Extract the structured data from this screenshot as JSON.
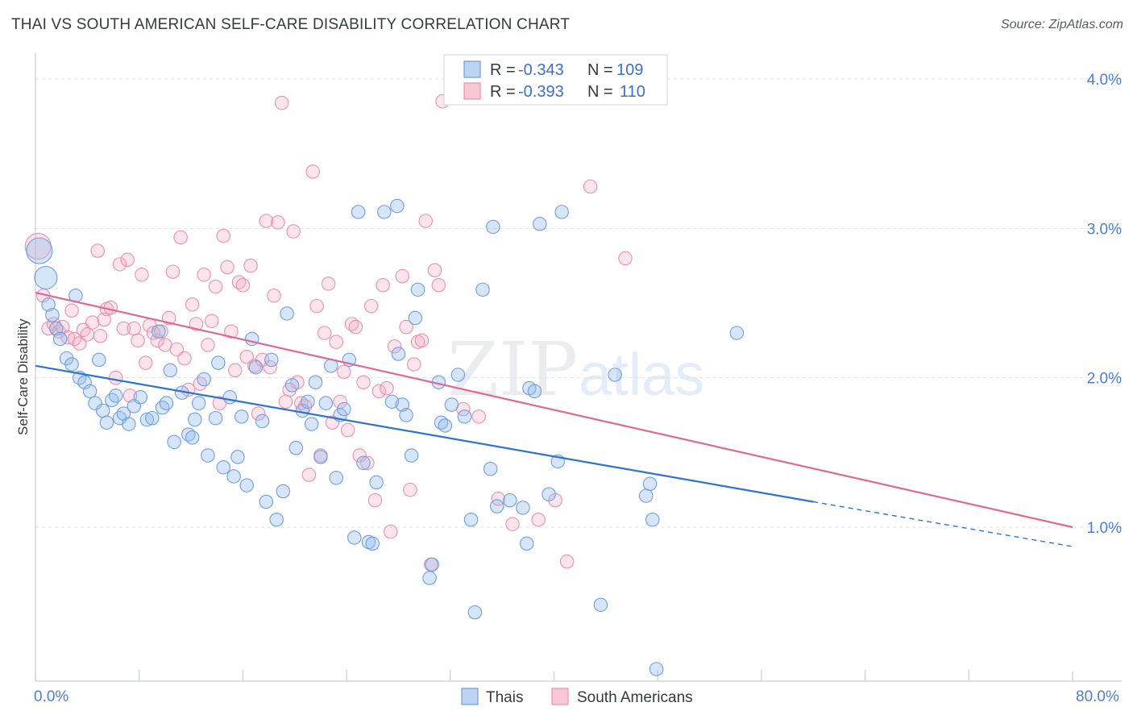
{
  "title": "THAI VS SOUTH AMERICAN SELF-CARE DISABILITY CORRELATION CHART",
  "source": "Source: ZipAtlas.com",
  "watermark": {
    "zip": "ZIP",
    "atlas": "atlas"
  },
  "legend": {
    "r_label": "R =",
    "n_label": "N =",
    "thai": {
      "r": "-0.343",
      "n": "109"
    },
    "sa": {
      "r": "-0.393",
      "n": "110"
    }
  },
  "chart_data": {
    "type": "scatter",
    "title": "THAI VS SOUTH AMERICAN SELF-CARE DISABILITY CORRELATION CHART",
    "xlabel": "",
    "ylabel": "Self-Care Disability",
    "xlim": [
      0,
      80
    ],
    "ylim": [
      0,
      4.2
    ],
    "x_tick_labels": [
      "0.0%",
      "80.0%"
    ],
    "y_ticks": [
      1.0,
      2.0,
      3.0,
      4.0
    ],
    "y_tick_labels": [
      "1.0%",
      "2.0%",
      "3.0%",
      "4.0%"
    ],
    "colors": {
      "thai": "#6f9ede",
      "sa": "#ec8fab",
      "thai_line": "#2f73d0",
      "sa_line": "#e06892"
    },
    "series": [
      {
        "name": "Thais",
        "trend": {
          "x": [
            0,
            60
          ],
          "y": [
            2.08,
            1.17
          ],
          "dashed_to": [
            80,
            0.87
          ]
        },
        "points": [
          [
            0.3,
            2.85
          ],
          [
            0.8,
            2.67
          ],
          [
            1,
            2.49
          ],
          [
            1.3,
            2.42
          ],
          [
            1.6,
            2.33
          ],
          [
            1.9,
            2.26
          ],
          [
            3.1,
            2.55
          ],
          [
            2.4,
            2.13
          ],
          [
            2.8,
            2.09
          ],
          [
            3.4,
            2.0
          ],
          [
            3.8,
            1.97
          ],
          [
            4.2,
            1.91
          ],
          [
            4.6,
            1.83
          ],
          [
            4.9,
            2.12
          ],
          [
            5.2,
            1.78
          ],
          [
            5.5,
            1.7
          ],
          [
            5.9,
            1.85
          ],
          [
            6.2,
            1.88
          ],
          [
            6.5,
            1.73
          ],
          [
            6.8,
            1.76
          ],
          [
            7.2,
            1.69
          ],
          [
            7.6,
            1.81
          ],
          [
            8.1,
            1.87
          ],
          [
            8.6,
            1.72
          ],
          [
            9,
            1.73
          ],
          [
            9.5,
            2.31
          ],
          [
            9.8,
            1.8
          ],
          [
            10.1,
            1.83
          ],
          [
            10.4,
            2.05
          ],
          [
            10.7,
            1.57
          ],
          [
            11.3,
            1.9
          ],
          [
            11.8,
            1.62
          ],
          [
            12.1,
            1.6
          ],
          [
            12.3,
            1.72
          ],
          [
            12.6,
            1.83
          ],
          [
            13,
            1.99
          ],
          [
            13.3,
            1.48
          ],
          [
            13.9,
            1.73
          ],
          [
            14.1,
            2.1
          ],
          [
            14.5,
            1.4
          ],
          [
            15,
            1.87
          ],
          [
            15.3,
            1.34
          ],
          [
            15.6,
            1.47
          ],
          [
            15.9,
            1.74
          ],
          [
            16.3,
            1.28
          ],
          [
            16.7,
            2.26
          ],
          [
            17,
            2.07
          ],
          [
            17.5,
            1.71
          ],
          [
            17.8,
            1.17
          ],
          [
            18.2,
            2.12
          ],
          [
            18.6,
            1.05
          ],
          [
            19.1,
            1.24
          ],
          [
            19.4,
            2.43
          ],
          [
            19.8,
            1.95
          ],
          [
            20.1,
            1.53
          ],
          [
            20.6,
            1.78
          ],
          [
            21,
            1.84
          ],
          [
            21.3,
            1.69
          ],
          [
            21.6,
            1.97
          ],
          [
            22,
            1.47
          ],
          [
            22.4,
            1.83
          ],
          [
            22.8,
            2.08
          ],
          [
            23.2,
            1.33
          ],
          [
            23.5,
            1.75
          ],
          [
            23.8,
            1.79
          ],
          [
            24.2,
            2.12
          ],
          [
            24.6,
            0.93
          ],
          [
            24.9,
            3.11
          ],
          [
            25.3,
            1.43
          ],
          [
            25.7,
            0.9
          ],
          [
            26,
            0.89
          ],
          [
            26.3,
            1.3
          ],
          [
            26.9,
            3.11
          ],
          [
            27.5,
            1.84
          ],
          [
            27.9,
            3.15
          ],
          [
            28,
            2.16
          ],
          [
            28.3,
            1.82
          ],
          [
            28.6,
            1.75
          ],
          [
            29,
            1.48
          ],
          [
            29.3,
            2.4
          ],
          [
            30.4,
            0.66
          ],
          [
            30.6,
            0.75
          ],
          [
            29.5,
            2.59
          ],
          [
            31.1,
            1.97
          ],
          [
            31.3,
            1.7
          ],
          [
            31.6,
            1.68
          ],
          [
            32.1,
            1.82
          ],
          [
            32.6,
            2.02
          ],
          [
            33.1,
            1.74
          ],
          [
            33.6,
            1.05
          ],
          [
            33.9,
            0.43
          ],
          [
            34.5,
            2.59
          ],
          [
            35.1,
            1.39
          ],
          [
            35.3,
            3.01
          ],
          [
            35.6,
            1.14
          ],
          [
            36.6,
            1.18
          ],
          [
            37.6,
            1.13
          ],
          [
            37.9,
            0.89
          ],
          [
            38.1,
            1.93
          ],
          [
            38.5,
            1.91
          ],
          [
            38.9,
            3.03
          ],
          [
            39.6,
            1.22
          ],
          [
            40.3,
            1.44
          ],
          [
            40.6,
            3.11
          ],
          [
            43.6,
            0.48
          ],
          [
            44.7,
            2.02
          ],
          [
            47.1,
            1.21
          ],
          [
            47.4,
            1.29
          ],
          [
            47.6,
            1.05
          ],
          [
            47.9,
            0.05
          ],
          [
            54.1,
            2.3
          ]
        ]
      },
      {
        "name": "South Americans",
        "trend": {
          "x": [
            0,
            80
          ],
          "y": [
            2.57,
            1.0
          ]
        },
        "points": [
          [
            0.2,
            2.88
          ],
          [
            0.6,
            2.55
          ],
          [
            1,
            2.33
          ],
          [
            1.4,
            2.36
          ],
          [
            1.8,
            2.31
          ],
          [
            2.1,
            2.34
          ],
          [
            2.5,
            2.27
          ],
          [
            2.8,
            2.45
          ],
          [
            3,
            2.26
          ],
          [
            3.4,
            2.23
          ],
          [
            3.7,
            2.32
          ],
          [
            4,
            2.29
          ],
          [
            4.4,
            2.37
          ],
          [
            4.8,
            2.85
          ],
          [
            5,
            2.28
          ],
          [
            5.3,
            2.39
          ],
          [
            5.5,
            2.46
          ],
          [
            5.8,
            2.47
          ],
          [
            6.2,
            2.0
          ],
          [
            6.5,
            2.76
          ],
          [
            6.8,
            2.33
          ],
          [
            7.1,
            2.79
          ],
          [
            7.3,
            1.88
          ],
          [
            7.6,
            2.33
          ],
          [
            7.9,
            2.25
          ],
          [
            8.2,
            2.69
          ],
          [
            8.5,
            2.1
          ],
          [
            8.8,
            2.35
          ],
          [
            9.1,
            2.3
          ],
          [
            9.4,
            2.25
          ],
          [
            9.7,
            2.31
          ],
          [
            10,
            2.22
          ],
          [
            10.3,
            2.4
          ],
          [
            10.6,
            2.71
          ],
          [
            10.9,
            2.19
          ],
          [
            11.2,
            2.94
          ],
          [
            11.5,
            2.13
          ],
          [
            11.8,
            1.92
          ],
          [
            12.1,
            2.49
          ],
          [
            12.4,
            2.36
          ],
          [
            12.7,
            1.96
          ],
          [
            13,
            2.69
          ],
          [
            13.3,
            2.22
          ],
          [
            13.6,
            2.38
          ],
          [
            13.9,
            2.61
          ],
          [
            14.2,
            1.83
          ],
          [
            14.5,
            2.95
          ],
          [
            14.8,
            2.74
          ],
          [
            15.1,
            2.31
          ],
          [
            15.4,
            2.05
          ],
          [
            15.7,
            2.64
          ],
          [
            16,
            2.62
          ],
          [
            16.3,
            2.14
          ],
          [
            16.6,
            2.75
          ],
          [
            16.9,
            2.08
          ],
          [
            17.2,
            1.76
          ],
          [
            17.5,
            2.12
          ],
          [
            17.8,
            3.05
          ],
          [
            18.1,
            2.07
          ],
          [
            18.4,
            2.55
          ],
          [
            18.7,
            3.04
          ],
          [
            19,
            3.84
          ],
          [
            19.3,
            1.84
          ],
          [
            19.6,
            1.92
          ],
          [
            19.9,
            2.98
          ],
          [
            20.2,
            1.97
          ],
          [
            20.5,
            1.83
          ],
          [
            20.8,
            1.81
          ],
          [
            21.1,
            1.35
          ],
          [
            21.4,
            3.38
          ],
          [
            21.7,
            2.48
          ],
          [
            22,
            1.48
          ],
          [
            22.3,
            2.3
          ],
          [
            22.6,
            2.63
          ],
          [
            22.9,
            1.7
          ],
          [
            23.2,
            2.24
          ],
          [
            23.5,
            1.84
          ],
          [
            23.8,
            2.04
          ],
          [
            24.1,
            1.65
          ],
          [
            24.4,
            2.36
          ],
          [
            24.7,
            2.34
          ],
          [
            25,
            1.48
          ],
          [
            25.3,
            1.97
          ],
          [
            25.6,
            1.43
          ],
          [
            25.9,
            2.48
          ],
          [
            26.2,
            1.18
          ],
          [
            26.5,
            1.91
          ],
          [
            26.8,
            2.62
          ],
          [
            27.1,
            1.93
          ],
          [
            27.4,
            0.97
          ],
          [
            27.7,
            2.21
          ],
          [
            28.3,
            2.68
          ],
          [
            28.6,
            2.34
          ],
          [
            28.9,
            1.25
          ],
          [
            29.2,
            2.09
          ],
          [
            29.5,
            2.24
          ],
          [
            29.8,
            2.25
          ],
          [
            30.1,
            3.05
          ],
          [
            30.5,
            0.75
          ],
          [
            30.8,
            2.72
          ],
          [
            31.1,
            2.62
          ],
          [
            31.4,
            3.85
          ],
          [
            33,
            1.79
          ],
          [
            34.2,
            1.74
          ],
          [
            35.7,
            1.19
          ],
          [
            36.8,
            1.02
          ],
          [
            38.8,
            1.05
          ],
          [
            40.1,
            1.18
          ],
          [
            41,
            0.77
          ],
          [
            42.8,
            3.28
          ],
          [
            45.5,
            2.8
          ]
        ]
      }
    ]
  },
  "bottom_legend": {
    "thai": "Thais",
    "sa": "South Americans"
  }
}
